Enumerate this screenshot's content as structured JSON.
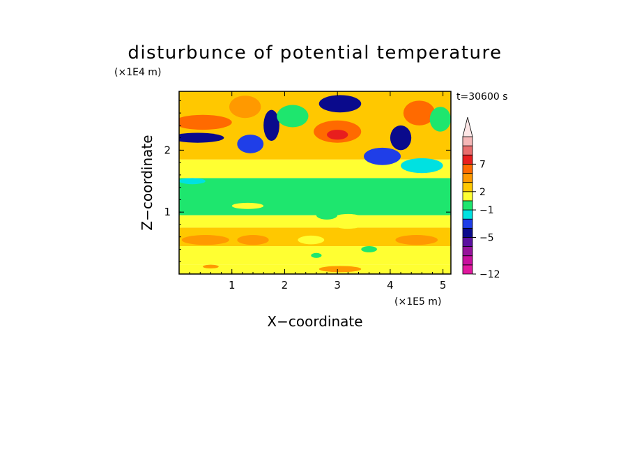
{
  "chart_data": {
    "type": "heatmap",
    "title": "disturbunce of potential temperature",
    "y_unit": "(×1E4 m)",
    "x_unit": "(×1E5 m)",
    "xlabel": "X−coordinate",
    "ylabel": "Z−coordinate",
    "time_label": "t=30600 s",
    "xlim": [
      0,
      5.15
    ],
    "ylim": [
      0,
      2.95
    ],
    "x_ticks": [
      {
        "value": 1,
        "label": "1"
      },
      {
        "value": 2,
        "label": "2"
      },
      {
        "value": 3,
        "label": "3"
      },
      {
        "value": 4,
        "label": "4"
      },
      {
        "value": 5,
        "label": "5"
      }
    ],
    "y_ticks": [
      {
        "value": 1,
        "label": "1"
      },
      {
        "value": 2,
        "label": "2"
      }
    ],
    "colorbar": {
      "levels": [
        {
          "color": "#e1189f"
        },
        {
          "color": "#c8109e"
        },
        {
          "color": "#96139b"
        },
        {
          "color": "#5a10a0"
        },
        {
          "color": "#0a0a8c"
        },
        {
          "color": "#1f3ee8"
        },
        {
          "color": "#00e1e1"
        },
        {
          "color": "#1ee66e"
        },
        {
          "color": "#ffff32"
        },
        {
          "color": "#ffc800"
        },
        {
          "color": "#ff9900"
        },
        {
          "color": "#ff6a00"
        },
        {
          "color": "#e81e1e"
        },
        {
          "color": "#e86d6d"
        },
        {
          "color": "#f5b7b7"
        }
      ],
      "labels": [
        {
          "value": -12,
          "label": "−12"
        },
        {
          "value": -5,
          "label": "−5"
        },
        {
          "value": -1,
          "label": "−1"
        },
        {
          "value": 2,
          "label": "2"
        },
        {
          "value": 7,
          "label": "7"
        }
      ],
      "extend": "max"
    },
    "bands": [
      {
        "z": [
          0.0,
          0.15
        ],
        "color": "#ffff32"
      },
      {
        "z": [
          0.15,
          0.45
        ],
        "color": "#ffff32"
      },
      {
        "z": [
          0.45,
          0.75
        ],
        "color": "#ffc800"
      },
      {
        "z": [
          0.75,
          0.95
        ],
        "color": "#ffff32"
      },
      {
        "z": [
          0.95,
          1.55
        ],
        "color": "#1ee66e"
      },
      {
        "z": [
          1.55,
          1.85
        ],
        "color": "#ffff32"
      },
      {
        "z": [
          1.85,
          2.95
        ],
        "color": "#ffc800"
      }
    ],
    "features": [
      {
        "x": 0.45,
        "z": 2.45,
        "rx": 0.55,
        "rz": 0.12,
        "color": "#ff6a00"
      },
      {
        "x": 0.35,
        "z": 2.2,
        "rx": 0.5,
        "rz": 0.08,
        "color": "#0a0a8c"
      },
      {
        "x": 1.25,
        "z": 2.7,
        "rx": 0.3,
        "rz": 0.18,
        "color": "#ff9900"
      },
      {
        "x": 1.35,
        "z": 2.1,
        "rx": 0.25,
        "rz": 0.15,
        "color": "#1f3ee8"
      },
      {
        "x": 1.75,
        "z": 2.4,
        "rx": 0.15,
        "rz": 0.25,
        "color": "#0a0a8c"
      },
      {
        "x": 2.15,
        "z": 2.55,
        "rx": 0.3,
        "rz": 0.18,
        "color": "#1ee66e"
      },
      {
        "x": 3.05,
        "z": 2.75,
        "rx": 0.4,
        "rz": 0.14,
        "color": "#0a0a8c"
      },
      {
        "x": 3.0,
        "z": 2.3,
        "rx": 0.45,
        "rz": 0.18,
        "color": "#ff6a00"
      },
      {
        "x": 3.0,
        "z": 2.25,
        "rx": 0.2,
        "rz": 0.08,
        "color": "#e81e1e"
      },
      {
        "x": 3.85,
        "z": 1.9,
        "rx": 0.35,
        "rz": 0.14,
        "color": "#1f3ee8"
      },
      {
        "x": 4.2,
        "z": 2.2,
        "rx": 0.2,
        "rz": 0.2,
        "color": "#0a0a8c"
      },
      {
        "x": 4.55,
        "z": 2.6,
        "rx": 0.3,
        "rz": 0.2,
        "color": "#ff6a00"
      },
      {
        "x": 4.95,
        "z": 2.5,
        "rx": 0.2,
        "rz": 0.2,
        "color": "#1ee66e"
      },
      {
        "x": 4.6,
        "z": 1.75,
        "rx": 0.4,
        "rz": 0.12,
        "color": "#00e1e1"
      },
      {
        "x": 0.25,
        "z": 1.5,
        "rx": 0.25,
        "rz": 0.05,
        "color": "#00e1e1"
      },
      {
        "x": 1.3,
        "z": 1.1,
        "rx": 0.3,
        "rz": 0.05,
        "color": "#ffff32"
      },
      {
        "x": 0.5,
        "z": 0.55,
        "rx": 0.45,
        "rz": 0.08,
        "color": "#ff9900"
      },
      {
        "x": 1.4,
        "z": 0.55,
        "rx": 0.3,
        "rz": 0.08,
        "color": "#ff9900"
      },
      {
        "x": 2.5,
        "z": 0.55,
        "rx": 0.25,
        "rz": 0.07,
        "color": "#ffff32"
      },
      {
        "x": 4.5,
        "z": 0.55,
        "rx": 0.4,
        "rz": 0.08,
        "color": "#ff9900"
      },
      {
        "x": 2.6,
        "z": 0.3,
        "rx": 0.1,
        "rz": 0.04,
        "color": "#1ee66e"
      },
      {
        "x": 3.6,
        "z": 0.4,
        "rx": 0.15,
        "rz": 0.05,
        "color": "#1ee66e"
      },
      {
        "x": 3.05,
        "z": 0.08,
        "rx": 0.4,
        "rz": 0.05,
        "color": "#ff9900"
      },
      {
        "x": 0.6,
        "z": 0.12,
        "rx": 0.15,
        "rz": 0.03,
        "color": "#ff9900"
      },
      {
        "x": 3.2,
        "z": 0.85,
        "rx": 0.35,
        "rz": 0.12,
        "color": "#ffff32"
      },
      {
        "x": 2.8,
        "z": 0.95,
        "rx": 0.2,
        "rz": 0.07,
        "color": "#1ee66e"
      }
    ]
  }
}
